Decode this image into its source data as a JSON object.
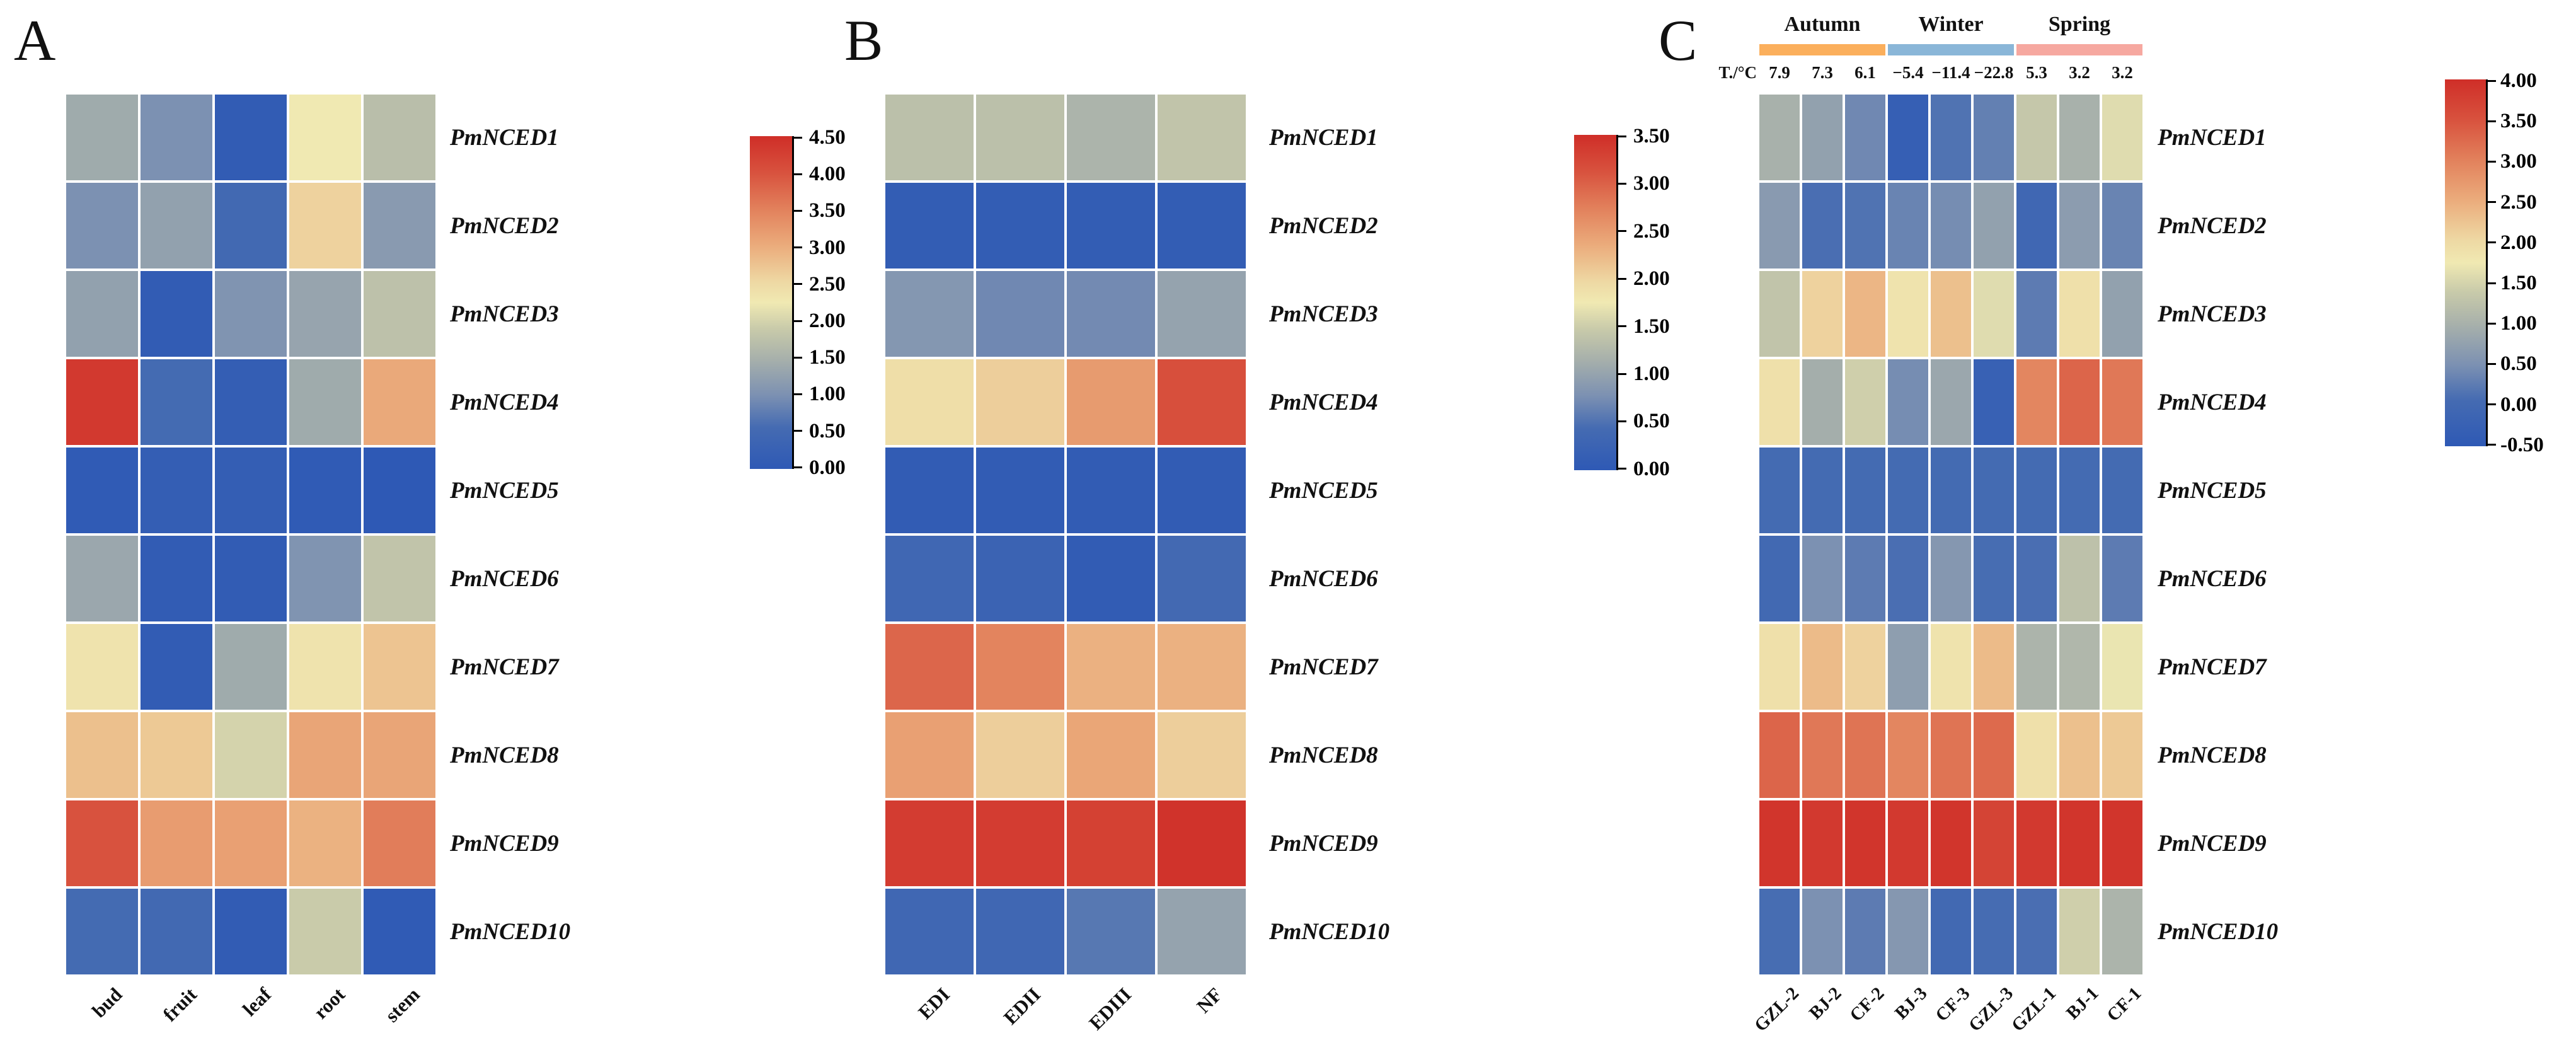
{
  "page": {
    "background": "#ffffff"
  },
  "colormap": {
    "stops": [
      [
        0.0,
        "#2E59B5"
      ],
      [
        0.125,
        "#456BB2"
      ],
      [
        0.22,
        "#7B90B2"
      ],
      [
        0.33,
        "#A7B0AB"
      ],
      [
        0.42,
        "#C8CAAA"
      ],
      [
        0.5,
        "#F0E9B2"
      ],
      [
        0.56,
        "#EED9A4"
      ],
      [
        0.67,
        "#EBAC7C"
      ],
      [
        0.78,
        "#E2815C"
      ],
      [
        0.89,
        "#D8523E"
      ],
      [
        1.0,
        "#CF2E28"
      ]
    ]
  },
  "chart_data": [
    {
      "type": "heatmap",
      "panel_label": "A",
      "title": "",
      "rows": [
        "PmNCED1",
        "PmNCED2",
        "PmNCED3",
        "PmNCED4",
        "PmNCED5",
        "PmNCED6",
        "PmNCED7",
        "PmNCED8",
        "PmNCED9",
        "PmNCED10"
      ],
      "columns": [
        "bud",
        "fruit",
        "leaf",
        "root",
        "stem"
      ],
      "vmin": 0.0,
      "vmax": 4.5,
      "colorbar_ticks": [
        "4.50",
        "4.00",
        "3.50",
        "3.00",
        "2.50",
        "2.00",
        "1.50",
        "1.00",
        "0.50",
        "0.00"
      ],
      "values": [
        [
          1.4,
          1.0,
          0.1,
          2.25,
          1.7
        ],
        [
          1.0,
          1.25,
          0.5,
          2.6,
          1.15
        ],
        [
          1.25,
          0.1,
          1.05,
          1.3,
          1.75
        ],
        [
          4.35,
          0.55,
          0.15,
          1.4,
          3.05
        ],
        [
          0.05,
          0.15,
          0.15,
          0.05,
          0.0
        ],
        [
          1.35,
          0.1,
          0.1,
          1.05,
          1.8
        ],
        [
          2.35,
          0.1,
          1.4,
          2.35,
          2.75
        ],
        [
          2.8,
          2.7,
          2.0,
          3.1,
          3.1
        ],
        [
          4.0,
          3.2,
          3.15,
          2.95,
          3.55
        ],
        [
          0.55,
          0.5,
          0.1,
          1.9,
          0.05
        ]
      ]
    },
    {
      "type": "heatmap",
      "panel_label": "B",
      "title": "",
      "rows": [
        "PmNCED1",
        "PmNCED2",
        "PmNCED3",
        "PmNCED4",
        "PmNCED5",
        "PmNCED6",
        "PmNCED7",
        "PmNCED8",
        "PmNCED9",
        "PmNCED10"
      ],
      "columns": [
        "EDI",
        "EDII",
        "EDIII",
        "NF"
      ],
      "vmin": 0.0,
      "vmax": 3.5,
      "colorbar_ticks": [
        "3.50",
        "3.00",
        "2.50",
        "2.00",
        "1.50",
        "1.00",
        "0.50",
        "0.00"
      ],
      "values": [
        [
          1.35,
          1.35,
          1.2,
          1.4
        ],
        [
          0.1,
          0.1,
          0.1,
          0.1
        ],
        [
          0.85,
          0.7,
          0.72,
          1.0
        ],
        [
          1.9,
          2.05,
          2.5,
          3.15
        ],
        [
          0.08,
          0.08,
          0.08,
          0.08
        ],
        [
          0.35,
          0.25,
          0.08,
          0.4
        ],
        [
          2.95,
          2.7,
          2.3,
          2.3
        ],
        [
          2.45,
          2.05,
          2.4,
          2.05
        ],
        [
          3.35,
          3.35,
          3.3,
          3.45
        ],
        [
          0.35,
          0.35,
          0.55,
          1.0
        ]
      ]
    },
    {
      "type": "heatmap",
      "panel_label": "C",
      "title": "",
      "rows": [
        "PmNCED1",
        "PmNCED2",
        "PmNCED3",
        "PmNCED4",
        "PmNCED5",
        "PmNCED6",
        "PmNCED7",
        "PmNCED8",
        "PmNCED9",
        "PmNCED10"
      ],
      "columns": [
        "GZL-2",
        "BJ-2",
        "CF-2",
        "BJ-3",
        "CF-3",
        "GZL-3",
        "GZL-1",
        "BJ-1",
        "CF-1"
      ],
      "vmin": -0.5,
      "vmax": 4.0,
      "colorbar_ticks": [
        "4.00",
        "3.50",
        "3.00",
        "2.50",
        "2.00",
        "1.50",
        "1.00",
        "0.50",
        "0.00",
        "-0.50"
      ],
      "season_groups": [
        {
          "label": "Autumn",
          "color": "#FBAF5C",
          "columns": 3
        },
        {
          "label": "Winter",
          "color": "#8AB6D8",
          "columns": 3
        },
        {
          "label": "Spring",
          "color": "#F6A8A0",
          "columns": 3
        }
      ],
      "temperature_axis_label": "T./°C",
      "temperatures": [
        "7.9",
        "7.3",
        "6.1",
        "−5.4",
        "−11.4",
        "−22.8",
        "5.3",
        "3.2",
        "3.2"
      ],
      "values": [
        [
          1.0,
          0.75,
          0.4,
          -0.3,
          0.15,
          0.3,
          1.35,
          1.0,
          1.6
        ],
        [
          0.65,
          0.1,
          0.15,
          0.35,
          0.45,
          0.75,
          -0.05,
          0.68,
          0.35
        ],
        [
          1.3,
          2.1,
          2.4,
          1.85,
          2.3,
          1.6,
          0.25,
          1.9,
          0.75
        ],
        [
          1.9,
          0.95,
          1.45,
          0.45,
          0.85,
          -0.25,
          2.95,
          3.3,
          3.1
        ],
        [
          0.05,
          0.05,
          0.05,
          0.05,
          0.05,
          0.05,
          0.05,
          0.05,
          0.05
        ],
        [
          0.0,
          0.5,
          0.25,
          0.1,
          0.6,
          0.08,
          0.1,
          1.25,
          0.25
        ],
        [
          1.9,
          2.35,
          2.1,
          0.7,
          1.85,
          2.35,
          1.05,
          1.1,
          1.7
        ],
        [
          3.3,
          3.1,
          3.15,
          2.95,
          3.15,
          3.25,
          1.9,
          2.3,
          2.2
        ],
        [
          3.9,
          3.85,
          3.9,
          3.85,
          3.9,
          3.7,
          3.85,
          3.9,
          3.9
        ],
        [
          0.08,
          0.5,
          0.25,
          0.6,
          0.0,
          0.07,
          0.1,
          1.45,
          1.05
        ]
      ]
    }
  ]
}
